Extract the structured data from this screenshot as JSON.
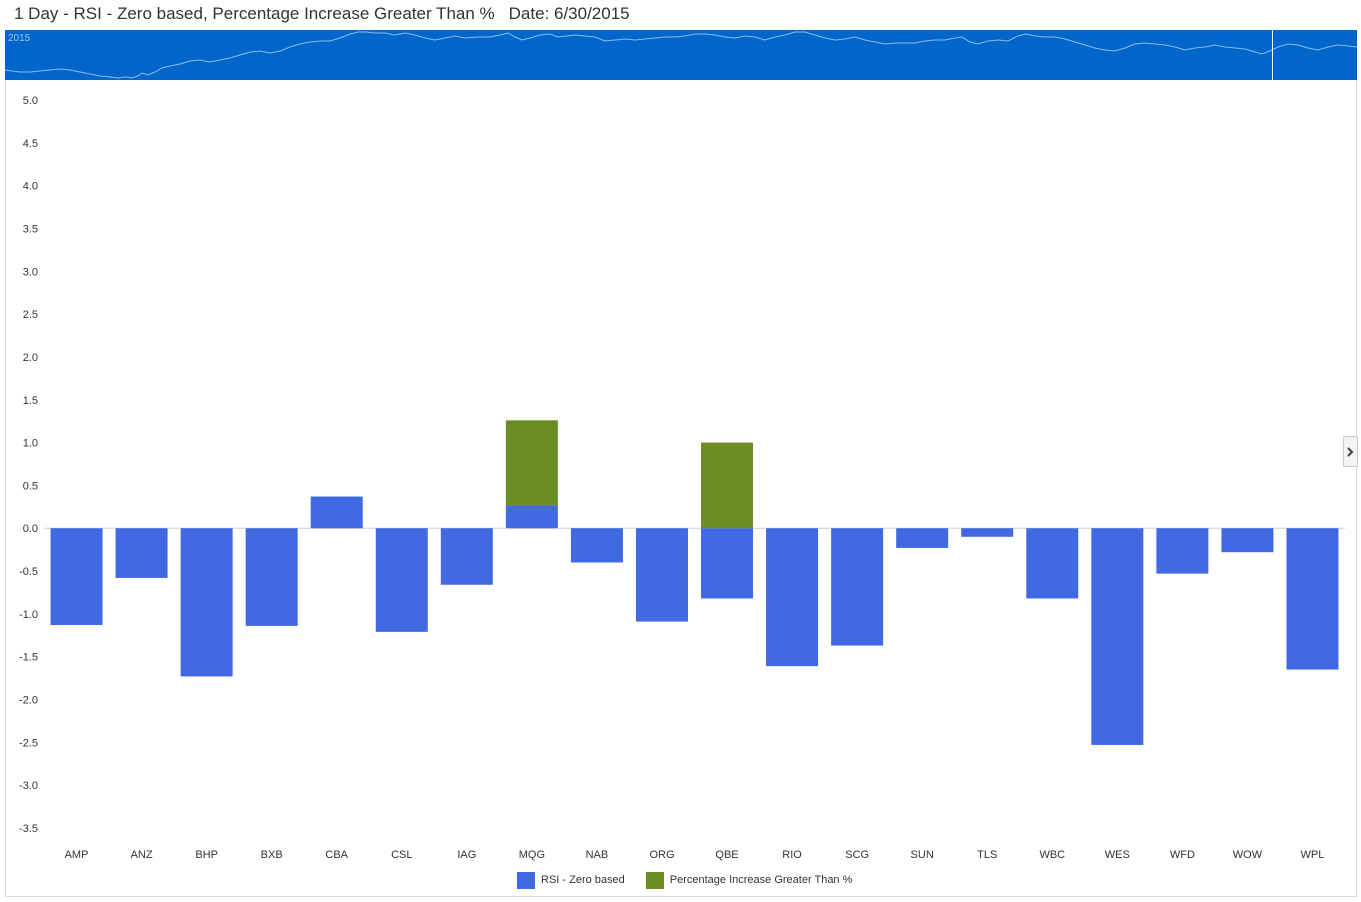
{
  "header": {
    "date_label": "Date: 6/30/2015"
  },
  "navigator": {
    "year_label": "2015"
  },
  "side_panel": {
    "toggle_icon": "chevron-right-icon"
  },
  "chart_data": {
    "type": "bar",
    "stacked": true,
    "title": "1 Day - RSI - Zero based, Percentage Increase Greater Than %",
    "categories": [
      "AMP",
      "ANZ",
      "BHP",
      "BXB",
      "CBA",
      "CSL",
      "IAG",
      "MQG",
      "NAB",
      "ORG",
      "QBE",
      "RIO",
      "SCG",
      "SUN",
      "TLS",
      "WBC",
      "WES",
      "WFD",
      "WOW",
      "WPL"
    ],
    "series": [
      {
        "name": "RSI - Zero based",
        "color": "#4169e1",
        "values": [
          -1.13,
          -0.58,
          -1.73,
          -1.14,
          0.37,
          -1.21,
          -0.66,
          0.26,
          -0.4,
          -1.09,
          -0.82,
          -1.61,
          -1.37,
          -0.23,
          -0.1,
          -0.82,
          -2.53,
          -0.53,
          -0.28,
          -1.65
        ]
      },
      {
        "name": "Percentage Increase Greater Than %",
        "color": "#6b8e23",
        "values": [
          0,
          0,
          0,
          0,
          0,
          0,
          0,
          1.0,
          0,
          0,
          1.0,
          0,
          0,
          0,
          0,
          0,
          0,
          0,
          0,
          0
        ]
      }
    ],
    "ylim": [
      -3.5,
      5.0
    ],
    "yticks": [
      "5.0",
      "4.5",
      "4.0",
      "3.5",
      "3.0",
      "2.5",
      "2.0",
      "1.5",
      "1.0",
      "0.5",
      "0.0",
      "-0.5",
      "-1.0",
      "-1.5",
      "-2.0",
      "-2.5",
      "-3.0",
      "-3.5"
    ],
    "grid": false,
    "legend_position": "bottom"
  }
}
